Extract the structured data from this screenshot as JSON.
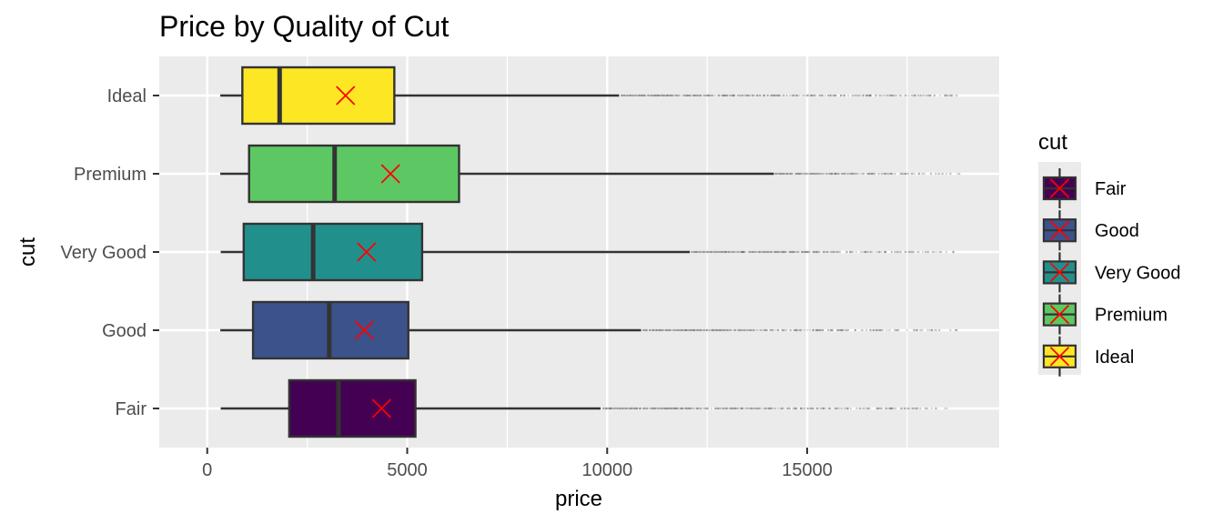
{
  "chart_data": {
    "type": "boxplot",
    "orientation": "horizontal",
    "title": "Price by Quality of Cut",
    "xlabel": "price",
    "ylabel": "cut",
    "xlim": [
      -1200,
      19800
    ],
    "xticks": [
      0,
      5000,
      10000,
      15000
    ],
    "grid": true,
    "legend": {
      "title": "cut",
      "position": "right",
      "entries": [
        "Fair",
        "Good",
        "Very Good",
        "Premium",
        "Ideal"
      ]
    },
    "mean_marker": {
      "shape": "x",
      "color": "#ff0000"
    },
    "series": [
      {
        "name": "Fair",
        "color": "#440154",
        "whisker_low": 337,
        "q1": 2050,
        "median": 3282,
        "q3": 5206,
        "whisker_high": 9836,
        "mean": 4359,
        "outliers_range": [
          9900,
          18574
        ]
      },
      {
        "name": "Good",
        "color": "#3B528B",
        "whisker_low": 327,
        "q1": 1145,
        "median": 3051,
        "q3": 5028,
        "whisker_high": 10848,
        "mean": 3929,
        "outliers_range": [
          10900,
          18788
        ]
      },
      {
        "name": "Very Good",
        "color": "#21908C",
        "whisker_low": 336,
        "q1": 912,
        "median": 2648,
        "q3": 5373,
        "whisker_high": 12064,
        "mean": 3982,
        "outliers_range": [
          12100,
          18818
        ]
      },
      {
        "name": "Premium",
        "color": "#5DC863",
        "whisker_low": 326,
        "q1": 1046,
        "median": 3185,
        "q3": 6296,
        "whisker_high": 14169,
        "mean": 4584,
        "outliers_range": [
          14200,
          18823
        ]
      },
      {
        "name": "Ideal",
        "color": "#FDE725",
        "whisker_low": 326,
        "q1": 878,
        "median": 1810,
        "q3": 4678,
        "whisker_high": 10300,
        "mean": 3458,
        "outliers_range": [
          10350,
          18806
        ]
      }
    ]
  }
}
